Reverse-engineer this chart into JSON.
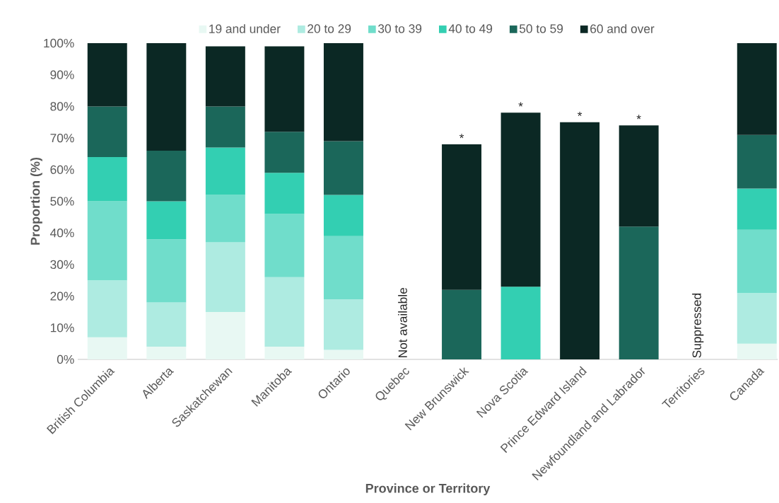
{
  "chart_data": {
    "type": "bar",
    "stacked": true,
    "xlabel": "Province or Territory",
    "ylabel": "Proportion (%)",
    "categories": [
      "British Columbia",
      "Alberta",
      "Saskatchewan",
      "Manitoba",
      "Ontario",
      "Quebec",
      "New Brunswick",
      "Nova Scotia",
      "Prince Edward Island",
      "Newfoundland and Labrador",
      "Territories",
      "Canada"
    ],
    "series": [
      {
        "name": "19 and under",
        "color": "#e8f8f3",
        "values": [
          7,
          4,
          15,
          4,
          3,
          null,
          null,
          null,
          null,
          null,
          null,
          5
        ]
      },
      {
        "name": "20 to 29",
        "color": "#aeebe1",
        "values": [
          18,
          14,
          22,
          22,
          16,
          null,
          null,
          null,
          null,
          null,
          null,
          16
        ]
      },
      {
        "name": "30 to 39",
        "color": "#70ddcb",
        "values": [
          25,
          20,
          15,
          20,
          20,
          null,
          null,
          null,
          null,
          null,
          null,
          20
        ]
      },
      {
        "name": "40 to 49",
        "color": "#33cfb2",
        "values": [
          14,
          12,
          15,
          13,
          13,
          null,
          null,
          23,
          null,
          null,
          null,
          13
        ]
      },
      {
        "name": "50 to 59",
        "color": "#1b675a",
        "values": [
          16,
          16,
          13,
          13,
          17,
          null,
          22,
          null,
          null,
          42,
          null,
          17
        ]
      },
      {
        "name": "60 and over",
        "color": "#0b2824",
        "values": [
          20,
          34,
          19,
          27,
          31,
          null,
          46,
          55,
          75,
          32,
          null,
          29
        ]
      }
    ],
    "ylim": [
      0,
      100
    ],
    "yticks": [
      {
        "value": 0,
        "label": "0%"
      },
      {
        "value": 10,
        "label": "10%"
      },
      {
        "value": 20,
        "label": "20%"
      },
      {
        "value": 30,
        "label": "30%"
      },
      {
        "value": 40,
        "label": "40%"
      },
      {
        "value": 50,
        "label": "50%"
      },
      {
        "value": 60,
        "label": "60%"
      },
      {
        "value": 70,
        "label": "70%"
      },
      {
        "value": 80,
        "label": "80%"
      },
      {
        "value": 90,
        "label": "90%"
      },
      {
        "value": 100,
        "label": "100%"
      }
    ],
    "annotations": [
      "Not available",
      {
        "text": "*",
        "x": "New Brunswick",
        "y": 68
      },
      {
        "text": "*",
        "x": "Nova Scotia",
        "y": 78
      },
      {
        "text": "*",
        "x": "Prince Edward Island",
        "y": 75
      },
      {
        "text": "*",
        "x": "Newfoundland and Labrador",
        "y": 74
      },
      "Suppressed"
    ],
    "legend": "top",
    "grid": false
  }
}
